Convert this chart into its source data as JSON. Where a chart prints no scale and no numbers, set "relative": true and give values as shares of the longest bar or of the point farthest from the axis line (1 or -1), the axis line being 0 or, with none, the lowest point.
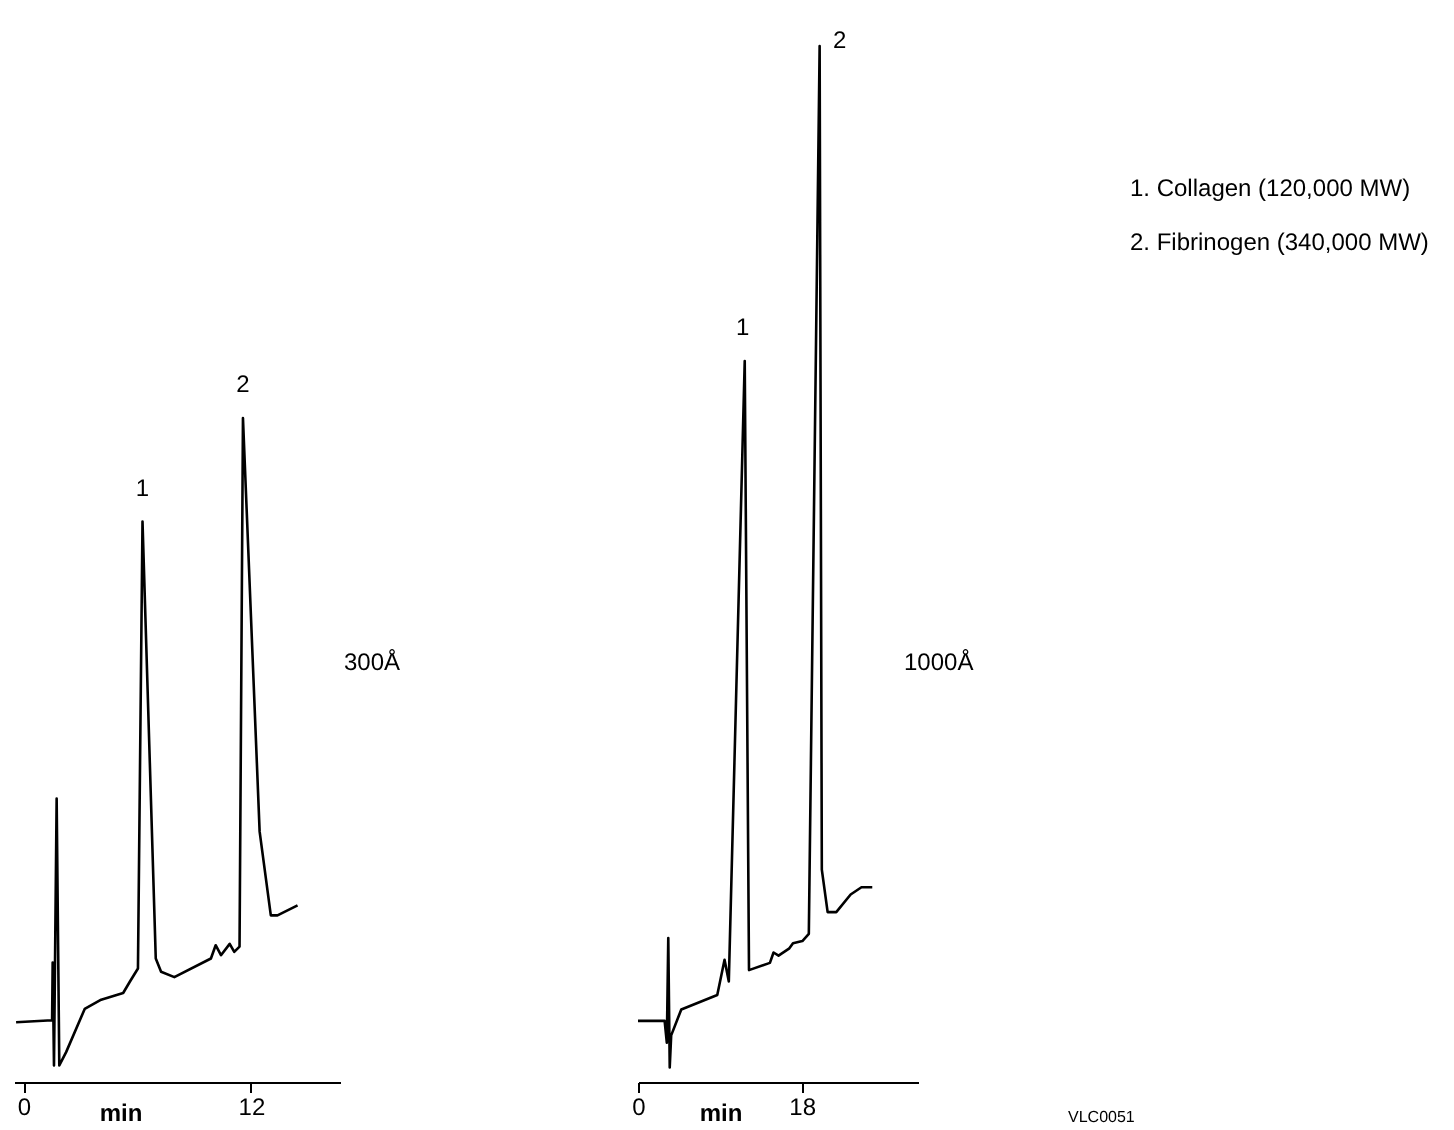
{
  "chart_data": [
    {
      "type": "line",
      "relative": true,
      "xlabel": "min",
      "xlim": [
        -0.5,
        16.7
      ],
      "xticks": [
        0,
        12
      ],
      "tick_labels": "x",
      "grid": false,
      "x": [
        -0.39,
        1.51,
        1.54,
        1.61,
        1.75,
        1.89,
        2.25,
        3.23,
        4.1,
        5.26,
        5.61,
        6.04,
        6.28,
        6.98,
        7.26,
        7.96,
        9.89,
        10.14,
        10.42,
        10.88,
        11.12,
        11.4,
        11.58,
        12.46,
        13.05,
        13.4,
        14.46
      ],
      "series": [
        {
          "color": "#000000",
          "values": [
            0.09,
            0.093,
            0.18,
            0.025,
            0.427,
            0.025,
            0.045,
            0.11,
            0.124,
            0.134,
            0.151,
            0.171,
            0.844,
            0.186,
            0.166,
            0.158,
            0.186,
            0.206,
            0.191,
            0.208,
            0.196,
            0.204,
            1.0,
            0.377,
            0.251,
            0.251,
            0.266
          ]
        }
      ],
      "annotations": [
        {
          "text": "1",
          "x": 6.28,
          "y": 0.844
        },
        {
          "text": "2",
          "x": 11.58,
          "y": 1.0
        },
        "300Å"
      ]
    },
    {
      "type": "line",
      "relative": true,
      "xlabel": "min",
      "xlim": [
        0,
        30.8
      ],
      "xticks": [
        0,
        18
      ],
      "tick_labels": "x",
      "grid": false,
      "x": [
        0,
        2.93,
        3.17,
        3.33,
        3.49,
        3.65,
        4.76,
        8.72,
        9.52,
        9.99,
        11.74,
        12.21,
        14.51,
        14.91,
        15.46,
        16.65,
        17.05,
        18.08,
        18.79,
        19.98,
        20.22,
        20.86,
        21.81,
        23.39,
        24.58,
        25.77
      ],
      "series": [
        {
          "color": "#000000",
          "values": [
            0.059,
            0.059,
            0.038,
            0.139,
            0.014,
            0.045,
            0.07,
            0.084,
            0.118,
            0.097,
            0.696,
            0.108,
            0.115,
            0.125,
            0.122,
            0.129,
            0.134,
            0.136,
            0.143,
            1.0,
            0.205,
            0.164,
            0.164,
            0.181,
            0.188,
            0.188
          ]
        }
      ],
      "annotations": [
        {
          "text": "1",
          "x": 11.74,
          "y": 0.696
        },
        {
          "text": "2",
          "x": 19.98,
          "y": 1.0
        },
        "1000Å",
        "1. Collagen (120,000 MW)",
        "2. Fibrinogen (340,000 MW)",
        "VLC0051"
      ]
    }
  ]
}
